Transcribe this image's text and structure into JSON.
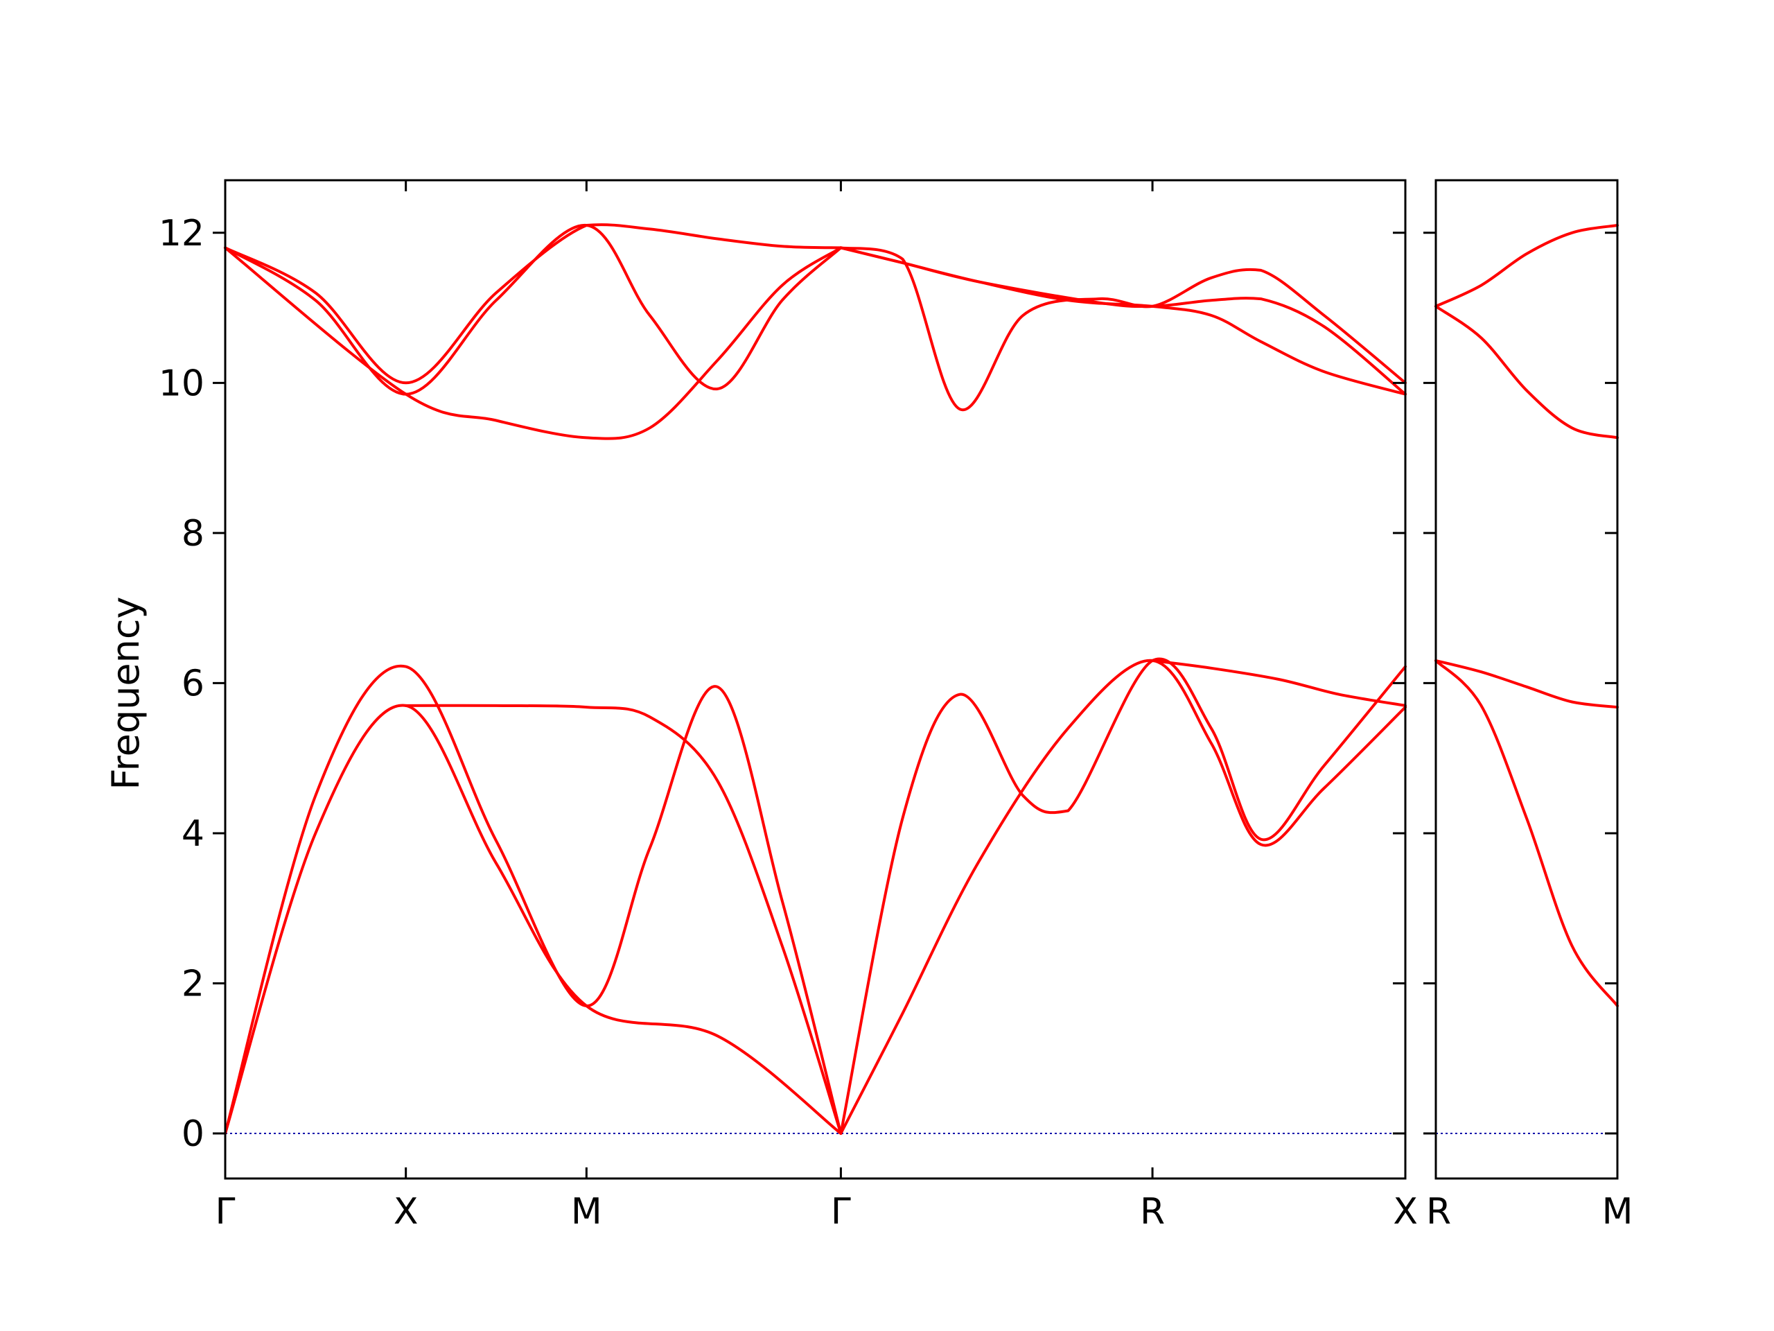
{
  "chart_data": {
    "type": "line",
    "title": "",
    "ylabel": "Frequency",
    "ylim": [
      -0.6,
      12.7
    ],
    "yticks": [
      0,
      2,
      4,
      6,
      8,
      10,
      12
    ],
    "grid": false,
    "legend": "none",
    "line_color": "#ff0000",
    "zero_line_color": "#0000aa",
    "panels": [
      {
        "name": "main",
        "xlim": [
          0,
          7.84
        ],
        "x_ticks": [
          {
            "x": 0,
            "label": "Γ"
          },
          {
            "x": 1.2,
            "label": "X"
          },
          {
            "x": 2.4,
            "label": "M"
          },
          {
            "x": 4.09,
            "label": "Γ"
          },
          {
            "x": 6.16,
            "label": "R"
          },
          {
            "x": 7.84,
            "label": "X"
          }
        ],
        "series": [
          {
            "x": [
              0,
              0.6,
              1.2,
              1.8,
              2.4,
              2.82,
              3.27,
              3.7,
              4.09
            ],
            "y": [
              11.8,
              11.2,
              10.0,
              11.2,
              12.1,
              12.05,
              11.92,
              11.82,
              11.8
            ]
          },
          {
            "x": [
              0,
              0.6,
              1.2,
              1.8,
              2.4,
              2.82,
              3.27,
              3.7,
              4.09
            ],
            "y": [
              11.8,
              11.1,
              9.85,
              11.1,
              12.1,
              10.9,
              9.92,
              11.1,
              11.8
            ]
          },
          {
            "x": [
              0,
              1.2,
              1.8,
              2.4,
              2.82,
              3.27,
              3.7,
              4.09
            ],
            "y": [
              11.8,
              9.85,
              9.5,
              9.27,
              9.4,
              10.3,
              11.3,
              11.8
            ]
          },
          {
            "x": [
              4.09,
              4.5,
              4.88,
              5.3,
              5.8,
              6.16,
              6.55,
              6.88,
              7.3,
              7.84
            ],
            "y": [
              11.8,
              11.65,
              9.65,
              10.9,
              11.12,
              11.02,
              11.4,
              11.5,
              10.9,
              10.0
            ]
          },
          {
            "x": [
              4.09,
              4.5,
              5.0,
              5.8,
              6.16,
              6.55,
              6.88,
              7.3,
              7.84
            ],
            "y": [
              11.8,
              11.6,
              11.35,
              11.07,
              11.02,
              11.1,
              11.12,
              10.75,
              9.85
            ]
          },
          {
            "x": [
              4.09,
              4.5,
              5.0,
              5.6,
              6.16,
              6.55,
              6.88,
              7.3,
              7.84
            ],
            "y": [
              11.8,
              11.6,
              11.35,
              11.1,
              11.02,
              10.9,
              10.55,
              10.15,
              9.85
            ]
          },
          {
            "x": [
              0,
              0.6,
              1.2,
              1.8,
              2.4,
              2.82,
              3.27,
              3.7,
              4.09
            ],
            "y": [
              0,
              4.5,
              6.22,
              3.9,
              1.7,
              3.8,
              5.95,
              3.1,
              0
            ]
          },
          {
            "x": [
              0,
              0.6,
              1.2,
              1.8,
              2.4,
              3.27,
              4.09
            ],
            "y": [
              0,
              4.0,
              5.7,
              3.6,
              1.7,
              1.3,
              0
            ]
          },
          {
            "x": [
              1.2,
              1.8,
              2.4,
              2.82,
              3.27,
              3.7,
              4.09
            ],
            "y": [
              5.7,
              5.7,
              5.68,
              5.55,
              4.7,
              2.5,
              0
            ]
          },
          {
            "x": [
              4.09,
              4.5,
              4.88,
              5.3,
              5.6,
              6.16,
              6.55,
              6.88,
              7.3,
              7.84
            ],
            "y": [
              0,
              4.2,
              5.85,
              4.5,
              4.3,
              6.3,
              5.4,
              3.92,
              4.9,
              6.22
            ]
          },
          {
            "x": [
              4.09,
              4.5,
              5.0,
              5.6,
              6.16,
              6.55,
              6.88,
              7.3,
              7.84
            ],
            "y": [
              0,
              1.6,
              3.6,
              5.4,
              6.3,
              5.2,
              3.85,
              4.6,
              5.68
            ]
          },
          {
            "x": [
              6.16,
              6.55,
              7.0,
              7.4,
              7.84
            ],
            "y": [
              6.3,
              6.2,
              6.05,
              5.85,
              5.7
            ]
          }
        ]
      },
      {
        "name": "side",
        "xlim": [
          0,
          1.2
        ],
        "x_ticks": [
          {
            "x": 0,
            "label": "R"
          },
          {
            "x": 1.2,
            "label": "M"
          }
        ],
        "series": [
          {
            "x": [
              0,
              0.3,
              0.6,
              0.9,
              1.2
            ],
            "y": [
              11.02,
              11.3,
              11.72,
              12.0,
              12.1
            ]
          },
          {
            "x": [
              0,
              0.3,
              0.6,
              0.9,
              1.2
            ],
            "y": [
              11.02,
              10.6,
              9.9,
              9.4,
              9.27
            ]
          },
          {
            "x": [
              0,
              0.3,
              0.6,
              0.9,
              1.2
            ],
            "y": [
              6.3,
              6.15,
              5.95,
              5.75,
              5.68
            ]
          },
          {
            "x": [
              0,
              0.3,
              0.6,
              0.9,
              1.2
            ],
            "y": [
              6.3,
              5.7,
              4.2,
              2.5,
              1.7
            ]
          }
        ]
      }
    ]
  }
}
